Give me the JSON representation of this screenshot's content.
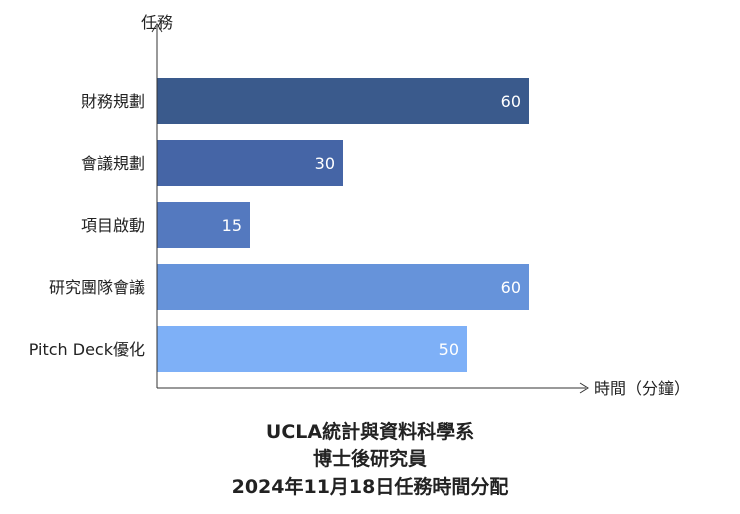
{
  "chart_data": {
    "type": "bar",
    "orientation": "horizontal",
    "categories": [
      "財務規劃",
      "會議規劃",
      "項目啟動",
      "研究團隊會議",
      "Pitch Deck優化"
    ],
    "values": [
      60,
      30,
      15,
      60,
      50
    ],
    "xlabel": "時間（分鐘）",
    "ylabel": "任務",
    "xlim": [
      0,
      65
    ],
    "grid": false,
    "legend": "none",
    "colors": [
      "#3a5a8c",
      "#4565a6",
      "#5479bf",
      "#6693da",
      "#7eb0f7"
    ],
    "title_lines": [
      "UCLA統計與資料科學系",
      "博士後研究員",
      "2024年11月18日任務時間分配"
    ]
  }
}
